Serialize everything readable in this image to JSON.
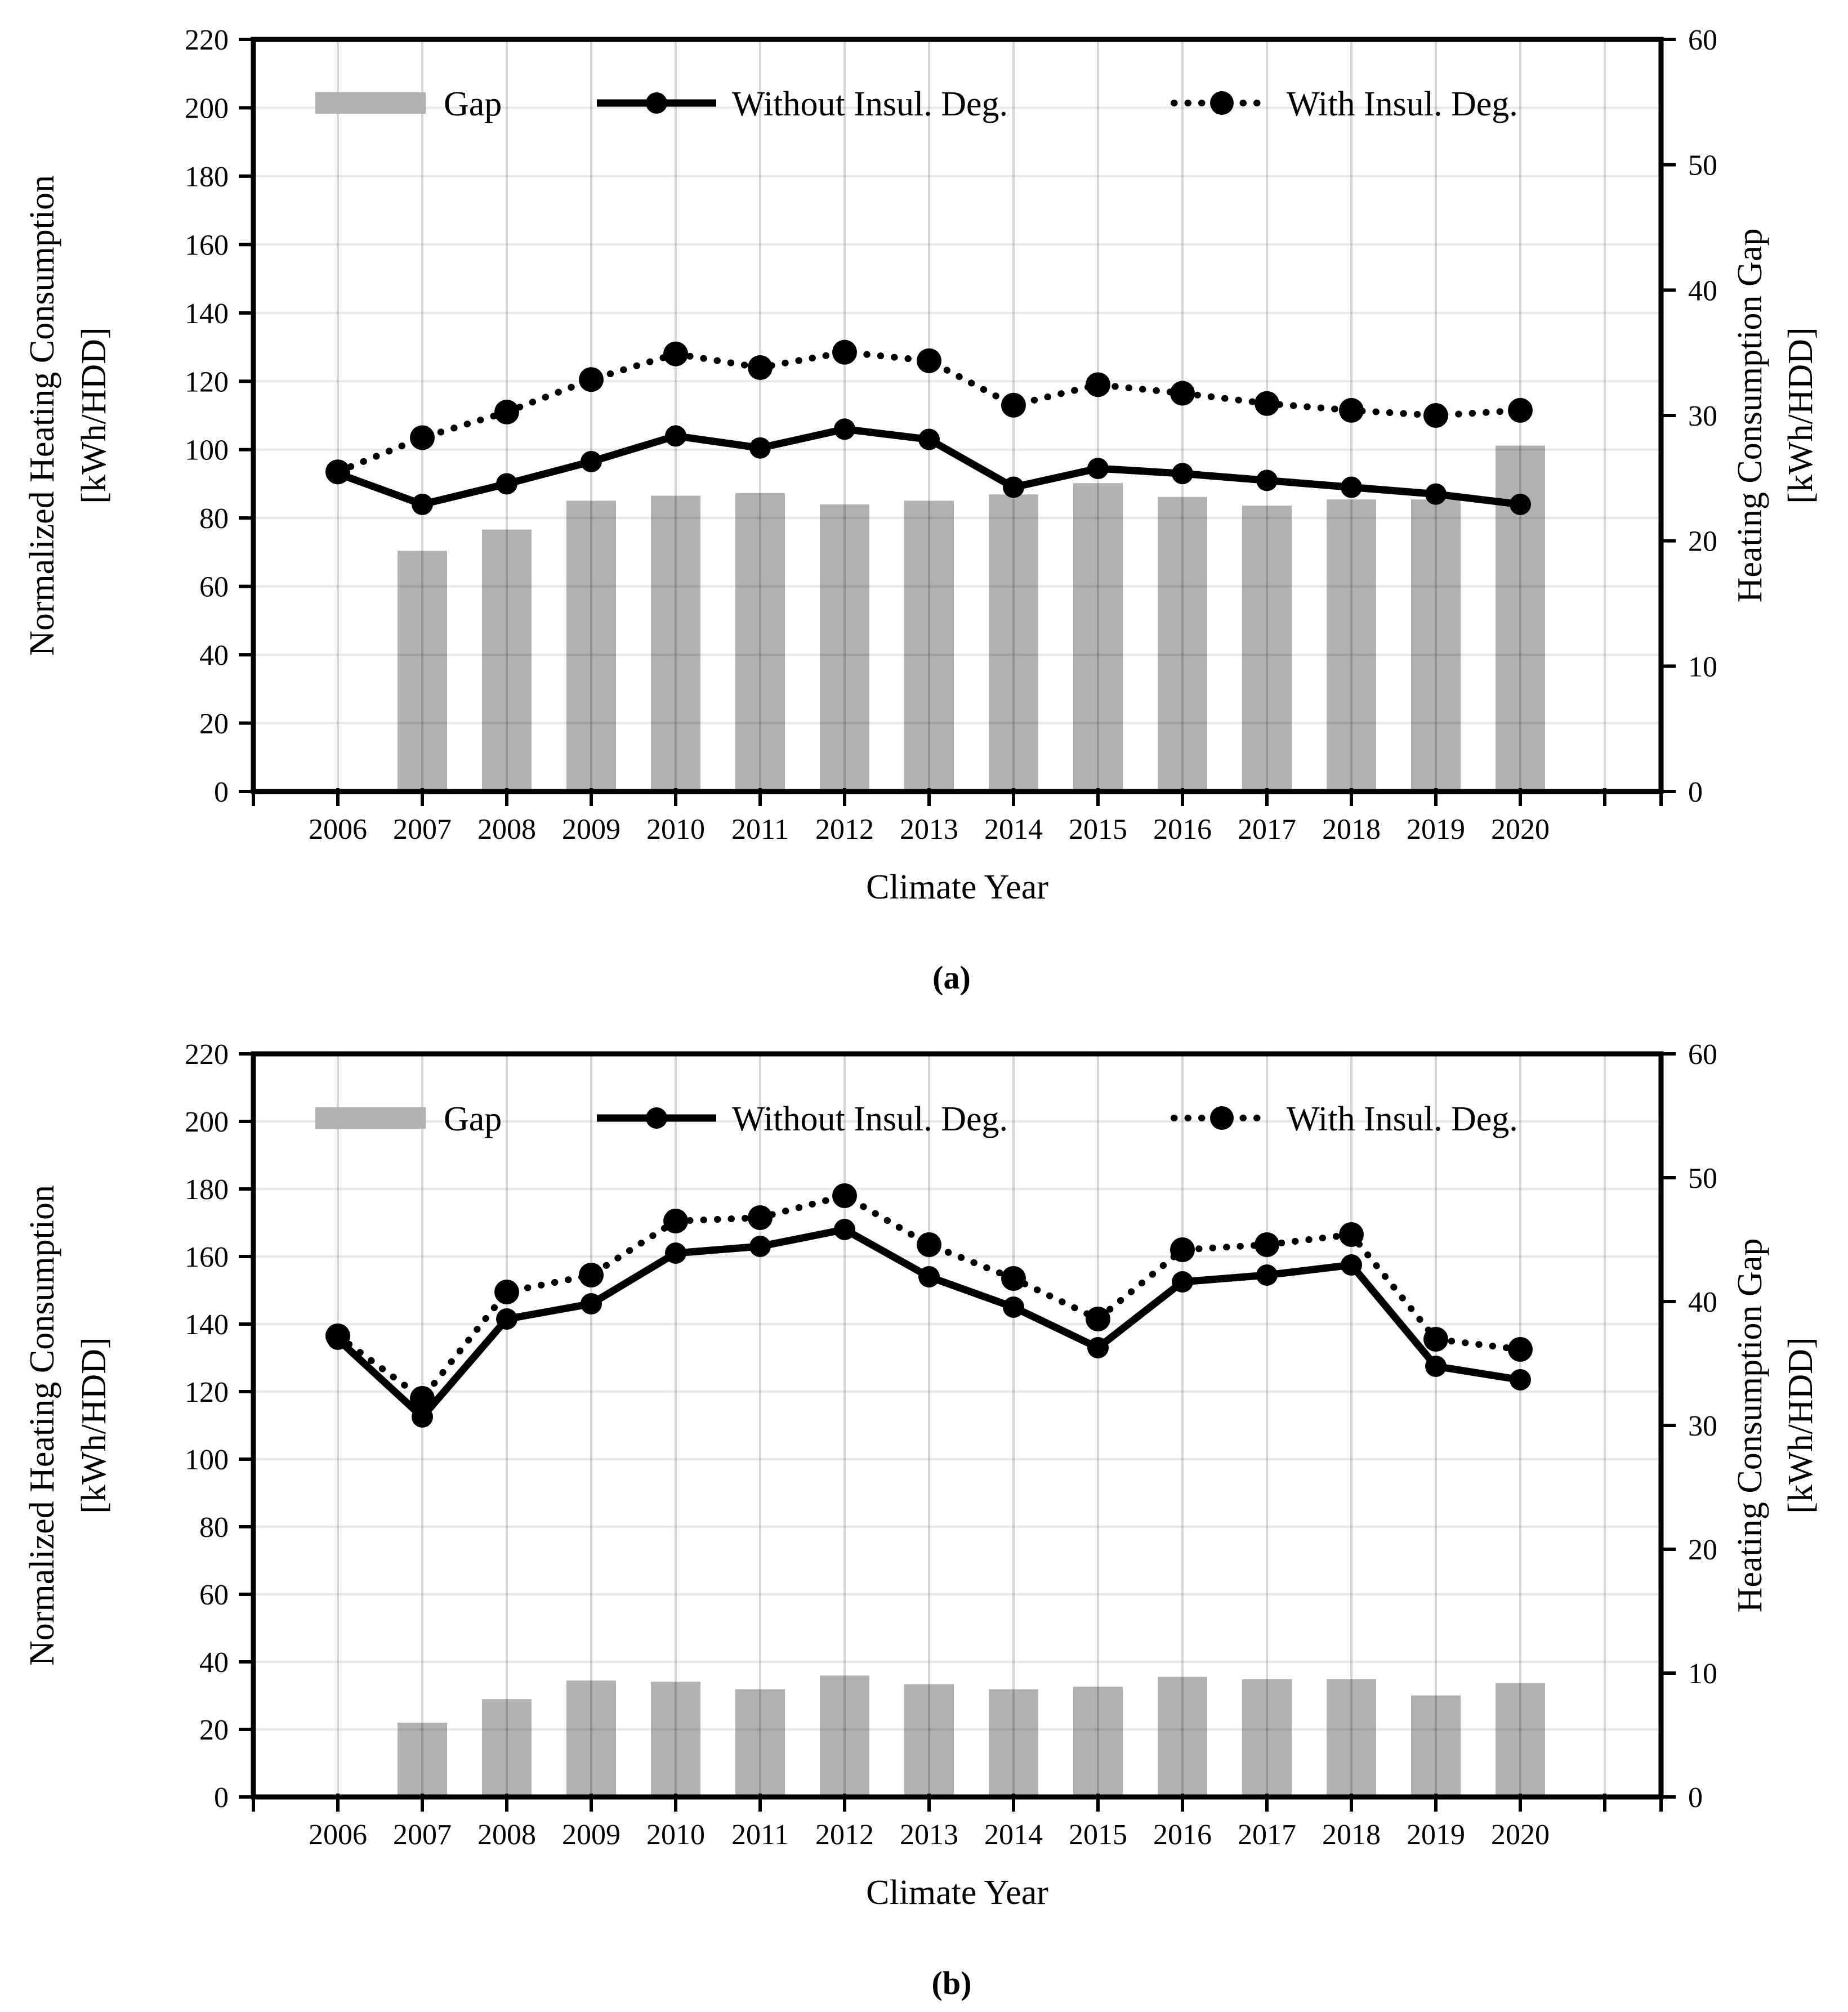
{
  "colors": {
    "bar": "#b1b1b1",
    "line": "#000000",
    "gridline": "#e3e3e3",
    "text": "#000000",
    "background": "#ffffff"
  },
  "chart_data": [
    {
      "id": "a",
      "type": "combo bar+line",
      "title": "",
      "caption": "(a)",
      "xlabel": "Climate Year",
      "ylabel_left_lines": [
        "Normalized Heating Consumption",
        "[kWh/HDD]"
      ],
      "ylabel_right_lines": [
        "Heating Consumption Gap",
        "[kWh/HDD]"
      ],
      "categories": [
        "2006",
        "2007",
        "2008",
        "2009",
        "2010",
        "2011",
        "2012",
        "2013",
        "2014",
        "2015",
        "2016",
        "2017",
        "2018",
        "2019",
        "2020"
      ],
      "ylim_left": [
        0,
        220
      ],
      "ytick_step_left": 20,
      "ylim_right": [
        0,
        60
      ],
      "ytick_step_right": 10,
      "grid": true,
      "legend_position": "top-inside",
      "series": [
        {
          "name": "Gap",
          "type": "bar",
          "axis": "right",
          "values": [
            0,
            19.2,
            20.9,
            23.2,
            23.6,
            23.8,
            22.9,
            23.2,
            23.7,
            24.6,
            23.5,
            22.8,
            23.3,
            23.3,
            27.6
          ]
        },
        {
          "name": "Without Insul. Deg.",
          "type": "line-solid",
          "axis": "left",
          "values": [
            93,
            84,
            90,
            96.5,
            104,
            100.5,
            106,
            103,
            89,
            94.5,
            93,
            91,
            89,
            87,
            84
          ]
        },
        {
          "name": "With Insul. Deg.",
          "type": "line-dotted",
          "axis": "left",
          "values": [
            93.5,
            103.5,
            111,
            120.5,
            128,
            124,
            128.5,
            126,
            113,
            119,
            116.5,
            113.5,
            111.5,
            110,
            111.5
          ]
        }
      ]
    },
    {
      "id": "b",
      "type": "combo bar+line",
      "title": "",
      "caption": "(b)",
      "xlabel": "Climate Year",
      "ylabel_left_lines": [
        "Normalized Heating Consumption",
        "[kWh/HDD]"
      ],
      "ylabel_right_lines": [
        "Heating Consumption Gap",
        "[kWh/HDD]"
      ],
      "categories": [
        "2006",
        "2007",
        "2008",
        "2009",
        "2010",
        "2011",
        "2012",
        "2013",
        "2014",
        "2015",
        "2016",
        "2017",
        "2018",
        "2019",
        "2020"
      ],
      "ylim_left": [
        0,
        220
      ],
      "ytick_step_left": 20,
      "ylim_right": [
        0,
        60
      ],
      "ytick_step_right": 10,
      "grid": true,
      "legend_position": "top-inside",
      "series": [
        {
          "name": "Gap",
          "type": "bar",
          "axis": "right",
          "values": [
            0,
            6.0,
            7.9,
            9.4,
            9.3,
            8.7,
            9.8,
            9.1,
            8.7,
            8.9,
            9.7,
            9.5,
            9.5,
            8.2,
            9.2
          ]
        },
        {
          "name": "Without Insul. Deg.",
          "type": "line-solid",
          "axis": "left",
          "values": [
            135.5,
            112.5,
            141.5,
            146,
            161,
            163,
            168,
            154,
            145,
            133,
            152.5,
            154.5,
            157.5,
            127.5,
            123.5
          ]
        },
        {
          "name": "With Insul. Deg.",
          "type": "line-dotted",
          "axis": "left",
          "values": [
            136.5,
            118,
            149.5,
            154.5,
            170.5,
            171.5,
            178,
            163.5,
            153.5,
            141.5,
            162,
            163.5,
            166.5,
            135.5,
            132.5
          ]
        }
      ]
    }
  ]
}
